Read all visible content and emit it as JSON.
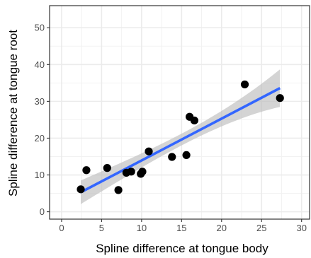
{
  "chart_data": {
    "type": "scatter",
    "title": "",
    "xlabel": "Spline difference at tongue body",
    "ylabel": "Spline difference at tongue root",
    "xlim": [
      -1.5,
      31
    ],
    "ylim": [
      -2,
      56
    ],
    "xticks": [
      0,
      5,
      10,
      15,
      20,
      25,
      30
    ],
    "yticks": [
      0,
      10,
      20,
      30,
      40,
      50
    ],
    "grid": true,
    "legend": "none",
    "points": [
      {
        "x": 2.4,
        "y": 6.1
      },
      {
        "x": 3.1,
        "y": 11.3
      },
      {
        "x": 5.7,
        "y": 11.9
      },
      {
        "x": 7.1,
        "y": 5.9
      },
      {
        "x": 8.1,
        "y": 10.6
      },
      {
        "x": 8.7,
        "y": 10.9
      },
      {
        "x": 9.9,
        "y": 10.3
      },
      {
        "x": 10.1,
        "y": 10.9
      },
      {
        "x": 10.9,
        "y": 16.4
      },
      {
        "x": 13.8,
        "y": 14.9
      },
      {
        "x": 15.6,
        "y": 15.4
      },
      {
        "x": 16.0,
        "y": 25.8
      },
      {
        "x": 16.6,
        "y": 24.8
      },
      {
        "x": 22.9,
        "y": 34.6
      },
      {
        "x": 27.3,
        "y": 30.9
      }
    ],
    "fit": {
      "x": [
        2.4,
        27.3
      ],
      "y": [
        5.3,
        33.6
      ],
      "ci_lower": [
        2.1,
        28.5
      ],
      "ci_upper": [
        8.5,
        38.7
      ]
    },
    "colors": {
      "points": "#000000",
      "fit_line": "#3366ff",
      "ci_band": "#bdbdbd",
      "grid_major": "#ebebeb",
      "grid_minor": "#f2f2f2",
      "panel_border": "#333333"
    }
  }
}
